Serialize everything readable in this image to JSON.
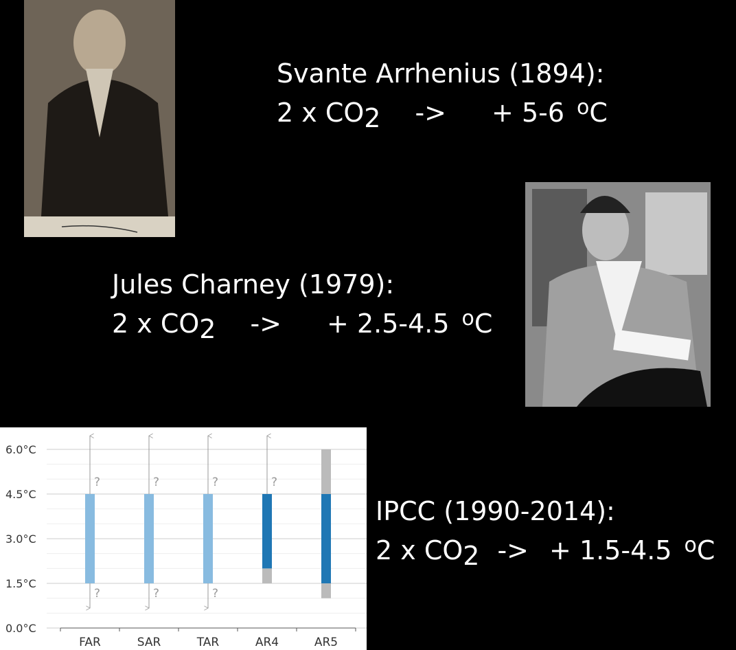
{
  "slides": [
    {
      "heading": "Svante Arrhenius (1894):",
      "formula": {
        "lead": "2 x CO",
        "sub": "2",
        "arrow": "->",
        "change": "+ 5-6",
        "sup": "o",
        "unit": "C"
      }
    },
    {
      "heading": "Jules Charney (1979):",
      "formula": {
        "lead": "2 x CO",
        "sub": "2",
        "arrow": "->",
        "change": "+ 2.5-4.5",
        "sup": "o",
        "unit": "C"
      }
    },
    {
      "heading": "IPCC (1990-2014):",
      "formula": {
        "lead": "2 x CO",
        "sub": "2",
        "arrow": "->",
        "change": "+ 1.5-4.5",
        "sup": "o",
        "unit": "C"
      }
    }
  ],
  "chart_data": {
    "type": "range_bar",
    "categories": [
      "FAR",
      "SAR",
      "TAR",
      "AR4",
      "AR5"
    ],
    "likely_low": [
      1.5,
      1.5,
      1.5,
      2.0,
      1.5
    ],
    "likely_high": [
      4.5,
      4.5,
      4.5,
      4.5,
      4.5
    ],
    "likely_colors": [
      "#88bbe0",
      "#88bbe0",
      "#88bbe0",
      "#1f77b4",
      "#1f77b4"
    ],
    "outer_low": [
      null,
      null,
      null,
      1.5,
      1.0
    ],
    "outer_high": [
      null,
      null,
      null,
      null,
      6.0
    ],
    "outer_color": "#bbbbbb",
    "open_high": [
      true,
      true,
      true,
      true,
      false
    ],
    "open_low": [
      true,
      true,
      true,
      false,
      false
    ],
    "question_label": "?",
    "ylim": [
      0,
      6.5
    ],
    "yticks": [
      {
        "value": 0,
        "label": "0.0°C"
      },
      {
        "value": 1.5,
        "label": "1.5°C"
      },
      {
        "value": 3,
        "label": "3.0°C"
      },
      {
        "value": 4.5,
        "label": "4.5°C"
      },
      {
        "value": 6,
        "label": "6.0°C"
      }
    ],
    "minor_yticks": [
      0.5,
      1,
      2,
      2.5,
      3.5,
      4,
      5,
      5.5
    ],
    "grid": true
  }
}
